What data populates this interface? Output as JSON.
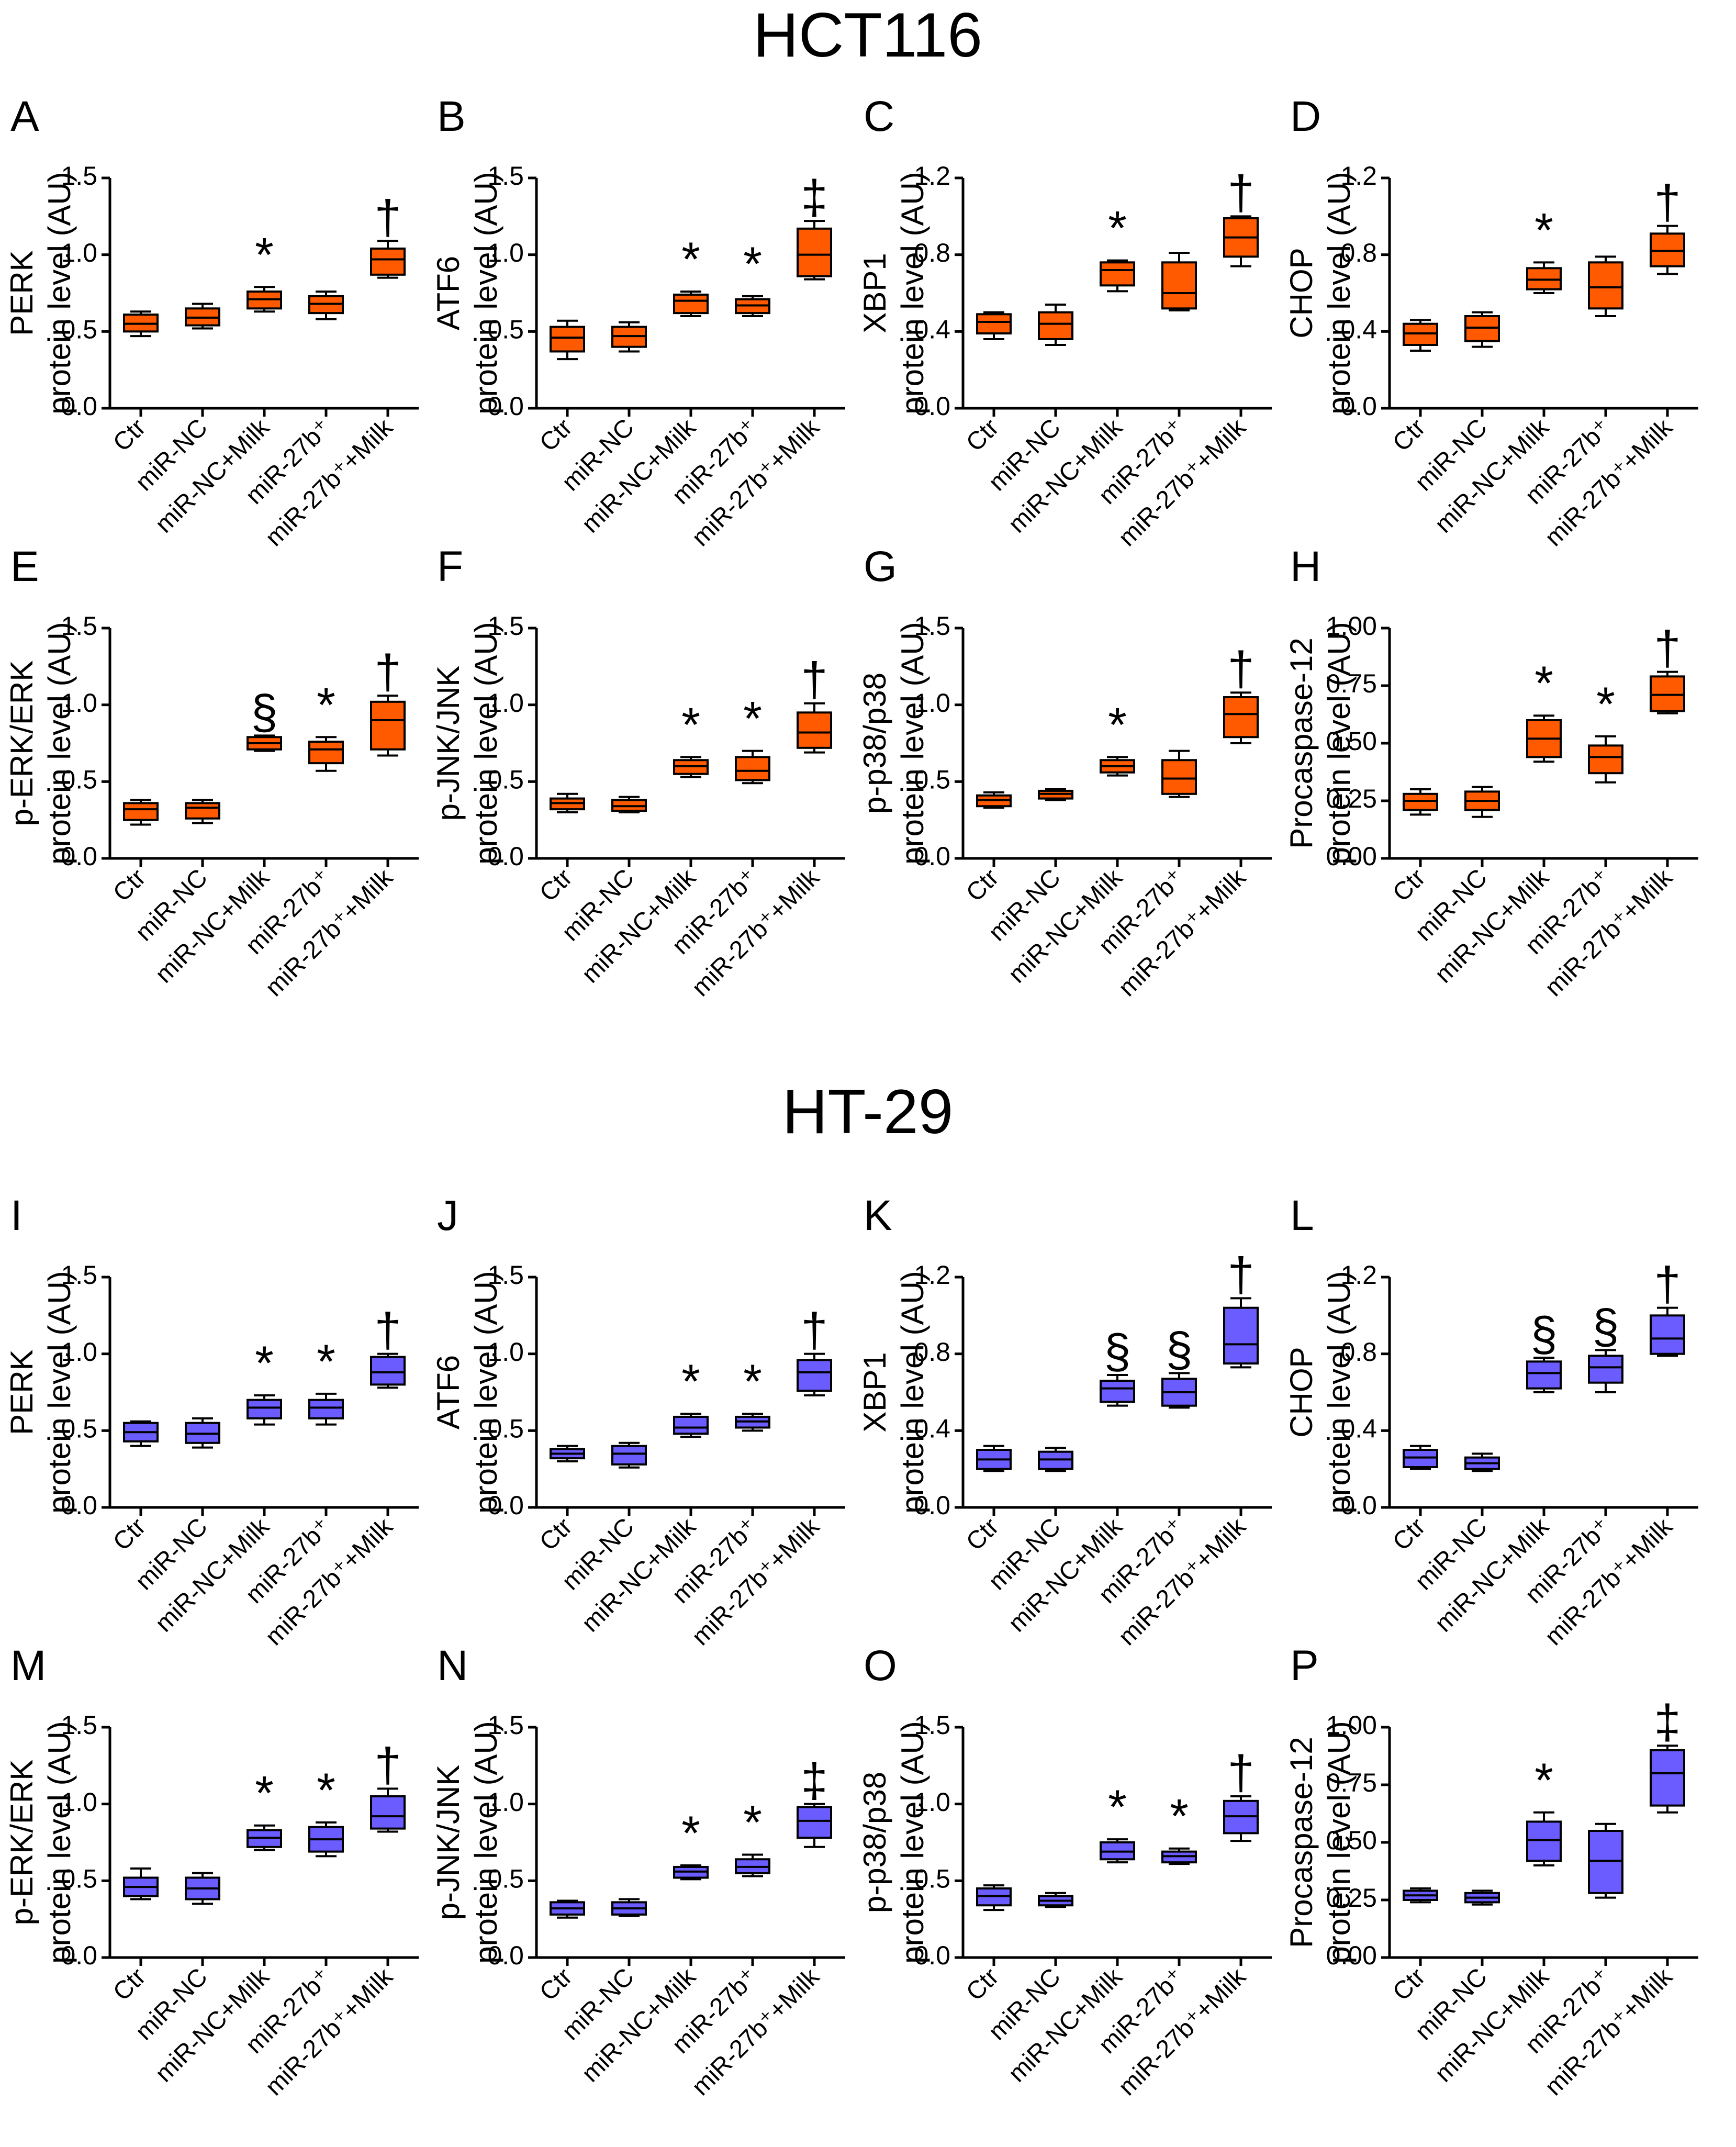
{
  "sections": [
    {
      "title": "HCT116",
      "color": "#FF5A00"
    },
    {
      "title": "HT-29",
      "color": "#6A5CFF"
    }
  ],
  "shared": {
    "ylabel_prefix": "protein level (AU)",
    "categories": [
      "Ctr",
      "miR-NC",
      "miR-NC+Milk",
      "miR-27b⁺",
      "miR-27b⁺+Milk"
    ]
  },
  "chart_data": [
    {
      "panel": "A",
      "section": 0,
      "type": "box",
      "title": "PERK",
      "ylabel": "protein level (AU)",
      "ylim": [
        0,
        1.5
      ],
      "ticks": [
        "0.0",
        "0.5",
        "1.0",
        "1.5"
      ],
      "boxes": [
        {
          "min": 0.47,
          "q1": 0.5,
          "median": 0.55,
          "q3": 0.61,
          "max": 0.63
        },
        {
          "min": 0.52,
          "q1": 0.54,
          "median": 0.59,
          "q3": 0.65,
          "max": 0.68
        },
        {
          "min": 0.63,
          "q1": 0.65,
          "median": 0.71,
          "q3": 0.76,
          "max": 0.79
        },
        {
          "min": 0.58,
          "q1": 0.62,
          "median": 0.68,
          "q3": 0.73,
          "max": 0.76
        },
        {
          "min": 0.85,
          "q1": 0.87,
          "median": 0.97,
          "q3": 1.04,
          "max": 1.09
        }
      ],
      "sig": [
        "",
        "",
        "*",
        "",
        "†"
      ]
    },
    {
      "panel": "B",
      "section": 0,
      "type": "box",
      "title": "ATF6",
      "ylabel": "protein level (AU)",
      "ylim": [
        0,
        1.5
      ],
      "ticks": [
        "0.0",
        "0.5",
        "1.0",
        "1.5"
      ],
      "boxes": [
        {
          "min": 0.32,
          "q1": 0.37,
          "median": 0.46,
          "q3": 0.53,
          "max": 0.57
        },
        {
          "min": 0.37,
          "q1": 0.4,
          "median": 0.47,
          "q3": 0.53,
          "max": 0.56
        },
        {
          "min": 0.6,
          "q1": 0.62,
          "median": 0.7,
          "q3": 0.74,
          "max": 0.76
        },
        {
          "min": 0.6,
          "q1": 0.62,
          "median": 0.67,
          "q3": 0.71,
          "max": 0.73
        },
        {
          "min": 0.84,
          "q1": 0.86,
          "median": 1.0,
          "q3": 1.17,
          "max": 1.22
        }
      ],
      "sig": [
        "",
        "",
        "*",
        "*",
        "‡"
      ]
    },
    {
      "panel": "C",
      "section": 0,
      "type": "box",
      "title": "XBP1",
      "ylabel": "protein level (AU)",
      "ylim": [
        0,
        1.2
      ],
      "ticks": [
        "0.0",
        "0.4",
        "0.8",
        "1.2"
      ],
      "boxes": [
        {
          "min": 0.36,
          "q1": 0.39,
          "median": 0.45,
          "q3": 0.49,
          "max": 0.5
        },
        {
          "min": 0.33,
          "q1": 0.36,
          "median": 0.44,
          "q3": 0.5,
          "max": 0.54
        },
        {
          "min": 0.61,
          "q1": 0.64,
          "median": 0.72,
          "q3": 0.76,
          "max": 0.77
        },
        {
          "min": 0.51,
          "q1": 0.52,
          "median": 0.6,
          "q3": 0.76,
          "max": 0.81
        },
        {
          "min": 0.74,
          "q1": 0.79,
          "median": 0.89,
          "q3": 0.99,
          "max": 1.0
        }
      ],
      "sig": [
        "",
        "",
        "*",
        "",
        "†"
      ]
    },
    {
      "panel": "D",
      "section": 0,
      "type": "box",
      "title": "CHOP",
      "ylabel": "protein level (AU)",
      "ylim": [
        0,
        1.2
      ],
      "ticks": [
        "0.0",
        "0.4",
        "0.8",
        "1.2"
      ],
      "boxes": [
        {
          "min": 0.3,
          "q1": 0.33,
          "median": 0.39,
          "q3": 0.44,
          "max": 0.46
        },
        {
          "min": 0.32,
          "q1": 0.35,
          "median": 0.42,
          "q3": 0.48,
          "max": 0.5
        },
        {
          "min": 0.6,
          "q1": 0.62,
          "median": 0.67,
          "q3": 0.73,
          "max": 0.76
        },
        {
          "min": 0.48,
          "q1": 0.52,
          "median": 0.63,
          "q3": 0.76,
          "max": 0.79
        },
        {
          "min": 0.7,
          "q1": 0.74,
          "median": 0.82,
          "q3": 0.91,
          "max": 0.95
        }
      ],
      "sig": [
        "",
        "",
        "*",
        "",
        "†"
      ]
    },
    {
      "panel": "E",
      "section": 0,
      "type": "box",
      "title": "p-ERK/ERK",
      "ylabel": "protein level (AU)",
      "ylim": [
        0,
        1.5
      ],
      "ticks": [
        "0.0",
        "0.5",
        "1.0",
        "1.5"
      ],
      "boxes": [
        {
          "min": 0.22,
          "q1": 0.25,
          "median": 0.32,
          "q3": 0.36,
          "max": 0.38
        },
        {
          "min": 0.23,
          "q1": 0.26,
          "median": 0.33,
          "q3": 0.36,
          "max": 0.38
        },
        {
          "min": 0.7,
          "q1": 0.71,
          "median": 0.75,
          "q3": 0.79,
          "max": 0.8
        },
        {
          "min": 0.57,
          "q1": 0.62,
          "median": 0.71,
          "q3": 0.76,
          "max": 0.79
        },
        {
          "min": 0.67,
          "q1": 0.71,
          "median": 0.9,
          "q3": 1.02,
          "max": 1.06
        }
      ],
      "sig": [
        "",
        "",
        "§",
        "*",
        "†"
      ]
    },
    {
      "panel": "F",
      "section": 0,
      "type": "box",
      "title": "p-JNK/JNK",
      "ylabel": "protein level (AU)",
      "ylim": [
        0,
        1.5
      ],
      "ticks": [
        "0.0",
        "0.5",
        "1.0",
        "1.5"
      ],
      "boxes": [
        {
          "min": 0.3,
          "q1": 0.32,
          "median": 0.36,
          "q3": 0.39,
          "max": 0.42
        },
        {
          "min": 0.3,
          "q1": 0.31,
          "median": 0.34,
          "q3": 0.38,
          "max": 0.4
        },
        {
          "min": 0.53,
          "q1": 0.55,
          "median": 0.6,
          "q3": 0.64,
          "max": 0.66
        },
        {
          "min": 0.49,
          "q1": 0.51,
          "median": 0.57,
          "q3": 0.66,
          "max": 0.7
        },
        {
          "min": 0.69,
          "q1": 0.72,
          "median": 0.82,
          "q3": 0.95,
          "max": 1.01
        }
      ],
      "sig": [
        "",
        "",
        "*",
        "*",
        "†"
      ]
    },
    {
      "panel": "G",
      "section": 0,
      "type": "box",
      "title": "p-p38/p38",
      "ylabel": "protein level (AU)",
      "ylim": [
        0,
        1.5
      ],
      "ticks": [
        "0.0",
        "0.5",
        "1.0",
        "1.5"
      ],
      "boxes": [
        {
          "min": 0.33,
          "q1": 0.34,
          "median": 0.38,
          "q3": 0.41,
          "max": 0.43
        },
        {
          "min": 0.38,
          "q1": 0.39,
          "median": 0.42,
          "q3": 0.44,
          "max": 0.45
        },
        {
          "min": 0.54,
          "q1": 0.56,
          "median": 0.6,
          "q3": 0.64,
          "max": 0.66
        },
        {
          "min": 0.4,
          "q1": 0.42,
          "median": 0.52,
          "q3": 0.64,
          "max": 0.7
        },
        {
          "min": 0.75,
          "q1": 0.79,
          "median": 0.94,
          "q3": 1.05,
          "max": 1.08
        }
      ],
      "sig": [
        "",
        "",
        "*",
        "",
        "†"
      ]
    },
    {
      "panel": "H",
      "section": 0,
      "type": "box",
      "title": "Procaspase-12",
      "ylabel": "protein level (AU)",
      "ylim": [
        0,
        1.0
      ],
      "ticks": [
        "0.00",
        "0.25",
        "0.50",
        "0.75",
        "1.00"
      ],
      "boxes": [
        {
          "min": 0.19,
          "q1": 0.21,
          "median": 0.25,
          "q3": 0.28,
          "max": 0.3
        },
        {
          "min": 0.18,
          "q1": 0.21,
          "median": 0.25,
          "q3": 0.29,
          "max": 0.31
        },
        {
          "min": 0.42,
          "q1": 0.44,
          "median": 0.52,
          "q3": 0.6,
          "max": 0.62
        },
        {
          "min": 0.33,
          "q1": 0.37,
          "median": 0.44,
          "q3": 0.49,
          "max": 0.53
        },
        {
          "min": 0.63,
          "q1": 0.64,
          "median": 0.71,
          "q3": 0.79,
          "max": 0.81
        }
      ],
      "sig": [
        "",
        "",
        "*",
        "*",
        "†"
      ]
    },
    {
      "panel": "I",
      "section": 1,
      "type": "box",
      "title": "PERK",
      "ylabel": "protein level (AU)",
      "ylim": [
        0,
        1.5
      ],
      "ticks": [
        "0.0",
        "0.5",
        "1.0",
        "1.5"
      ],
      "boxes": [
        {
          "min": 0.4,
          "q1": 0.43,
          "median": 0.49,
          "q3": 0.55,
          "max": 0.56
        },
        {
          "min": 0.39,
          "q1": 0.42,
          "median": 0.48,
          "q3": 0.55,
          "max": 0.58
        },
        {
          "min": 0.54,
          "q1": 0.58,
          "median": 0.65,
          "q3": 0.7,
          "max": 0.73
        },
        {
          "min": 0.54,
          "q1": 0.58,
          "median": 0.65,
          "q3": 0.7,
          "max": 0.74
        },
        {
          "min": 0.78,
          "q1": 0.8,
          "median": 0.88,
          "q3": 0.98,
          "max": 1.0
        }
      ],
      "sig": [
        "",
        "",
        "*",
        "*",
        "†"
      ]
    },
    {
      "panel": "J",
      "section": 1,
      "type": "box",
      "title": "ATF6",
      "ylabel": "protein level (AU)",
      "ylim": [
        0,
        1.5
      ],
      "ticks": [
        "0.0",
        "0.5",
        "1.0",
        "1.5"
      ],
      "boxes": [
        {
          "min": 0.3,
          "q1": 0.32,
          "median": 0.35,
          "q3": 0.38,
          "max": 0.4
        },
        {
          "min": 0.26,
          "q1": 0.28,
          "median": 0.35,
          "q3": 0.4,
          "max": 0.42
        },
        {
          "min": 0.46,
          "q1": 0.48,
          "median": 0.52,
          "q3": 0.59,
          "max": 0.61
        },
        {
          "min": 0.5,
          "q1": 0.52,
          "median": 0.56,
          "q3": 0.59,
          "max": 0.61
        },
        {
          "min": 0.73,
          "q1": 0.76,
          "median": 0.88,
          "q3": 0.96,
          "max": 1.0
        }
      ],
      "sig": [
        "",
        "",
        "*",
        "*",
        "†"
      ]
    },
    {
      "panel": "K",
      "section": 1,
      "type": "box",
      "title": "XBP1",
      "ylabel": "protein level (AU)",
      "ylim": [
        0,
        1.2
      ],
      "ticks": [
        "0.0",
        "0.4",
        "0.8",
        "1.2"
      ],
      "boxes": [
        {
          "min": 0.19,
          "q1": 0.2,
          "median": 0.25,
          "q3": 0.3,
          "max": 0.32
        },
        {
          "min": 0.19,
          "q1": 0.2,
          "median": 0.25,
          "q3": 0.29,
          "max": 0.31
        },
        {
          "min": 0.53,
          "q1": 0.55,
          "median": 0.62,
          "q3": 0.66,
          "max": 0.69
        },
        {
          "min": 0.52,
          "q1": 0.53,
          "median": 0.6,
          "q3": 0.67,
          "max": 0.7
        },
        {
          "min": 0.73,
          "q1": 0.75,
          "median": 0.85,
          "q3": 1.04,
          "max": 1.09
        }
      ],
      "sig": [
        "",
        "",
        "§",
        "§",
        "†"
      ]
    },
    {
      "panel": "L",
      "section": 1,
      "type": "box",
      "title": "CHOP",
      "ylabel": "protein level (AU)",
      "ylim": [
        0,
        1.2
      ],
      "ticks": [
        "0.0",
        "0.4",
        "0.8",
        "1.2"
      ],
      "boxes": [
        {
          "min": 0.2,
          "q1": 0.21,
          "median": 0.26,
          "q3": 0.3,
          "max": 0.32
        },
        {
          "min": 0.19,
          "q1": 0.2,
          "median": 0.23,
          "q3": 0.26,
          "max": 0.28
        },
        {
          "min": 0.6,
          "q1": 0.62,
          "median": 0.7,
          "q3": 0.76,
          "max": 0.78
        },
        {
          "min": 0.6,
          "q1": 0.65,
          "median": 0.73,
          "q3": 0.79,
          "max": 0.82
        },
        {
          "min": 0.79,
          "q1": 0.8,
          "median": 0.88,
          "q3": 1.0,
          "max": 1.04
        }
      ],
      "sig": [
        "",
        "",
        "§",
        "§",
        "†"
      ]
    },
    {
      "panel": "M",
      "section": 1,
      "type": "box",
      "title": "p-ERK/ERK",
      "ylabel": "protein level (AU)",
      "ylim": [
        0,
        1.5
      ],
      "ticks": [
        "0.0",
        "0.5",
        "1.0",
        "1.5"
      ],
      "boxes": [
        {
          "min": 0.38,
          "q1": 0.4,
          "median": 0.46,
          "q3": 0.52,
          "max": 0.58
        },
        {
          "min": 0.35,
          "q1": 0.38,
          "median": 0.45,
          "q3": 0.52,
          "max": 0.55
        },
        {
          "min": 0.7,
          "q1": 0.72,
          "median": 0.78,
          "q3": 0.83,
          "max": 0.86
        },
        {
          "min": 0.66,
          "q1": 0.69,
          "median": 0.77,
          "q3": 0.85,
          "max": 0.88
        },
        {
          "min": 0.82,
          "q1": 0.84,
          "median": 0.92,
          "q3": 1.05,
          "max": 1.1
        }
      ],
      "sig": [
        "",
        "",
        "*",
        "*",
        "†"
      ]
    },
    {
      "panel": "N",
      "section": 1,
      "type": "box",
      "title": "p-JNK/JNK",
      "ylabel": "protein level (AU)",
      "ylim": [
        0,
        1.5
      ],
      "ticks": [
        "0.0",
        "0.5",
        "1.0",
        "1.5"
      ],
      "boxes": [
        {
          "min": 0.26,
          "q1": 0.28,
          "median": 0.32,
          "q3": 0.36,
          "max": 0.37
        },
        {
          "min": 0.27,
          "q1": 0.28,
          "median": 0.32,
          "q3": 0.36,
          "max": 0.38
        },
        {
          "min": 0.51,
          "q1": 0.52,
          "median": 0.56,
          "q3": 0.59,
          "max": 0.6
        },
        {
          "min": 0.53,
          "q1": 0.55,
          "median": 0.59,
          "q3": 0.64,
          "max": 0.67
        },
        {
          "min": 0.72,
          "q1": 0.78,
          "median": 0.89,
          "q3": 0.98,
          "max": 1.0
        }
      ],
      "sig": [
        "",
        "",
        "*",
        "*",
        "‡"
      ]
    },
    {
      "panel": "O",
      "section": 1,
      "type": "box",
      "title": "p-p38/p38",
      "ylabel": "protein level (AU)",
      "ylim": [
        0,
        1.5
      ],
      "ticks": [
        "0.0",
        "0.5",
        "1.0",
        "1.5"
      ],
      "boxes": [
        {
          "min": 0.31,
          "q1": 0.34,
          "median": 0.4,
          "q3": 0.45,
          "max": 0.47
        },
        {
          "min": 0.33,
          "q1": 0.34,
          "median": 0.37,
          "q3": 0.4,
          "max": 0.42
        },
        {
          "min": 0.62,
          "q1": 0.64,
          "median": 0.69,
          "q3": 0.75,
          "max": 0.77
        },
        {
          "min": 0.61,
          "q1": 0.62,
          "median": 0.66,
          "q3": 0.69,
          "max": 0.71
        },
        {
          "min": 0.76,
          "q1": 0.81,
          "median": 0.92,
          "q3": 1.02,
          "max": 1.05
        }
      ],
      "sig": [
        "",
        "",
        "*",
        "*",
        "†"
      ]
    },
    {
      "panel": "P",
      "section": 1,
      "type": "box",
      "title": "Procaspase-12",
      "ylabel": "protein level (AU)",
      "ylim": [
        0,
        1.0
      ],
      "ticks": [
        "0.00",
        "0.25",
        "0.50",
        "0.75",
        "1.00"
      ],
      "boxes": [
        {
          "min": 0.24,
          "q1": 0.25,
          "median": 0.27,
          "q3": 0.29,
          "max": 0.3
        },
        {
          "min": 0.23,
          "q1": 0.24,
          "median": 0.26,
          "q3": 0.28,
          "max": 0.29
        },
        {
          "min": 0.4,
          "q1": 0.42,
          "median": 0.51,
          "q3": 0.59,
          "max": 0.63
        },
        {
          "min": 0.26,
          "q1": 0.28,
          "median": 0.42,
          "q3": 0.55,
          "max": 0.58
        },
        {
          "min": 0.63,
          "q1": 0.66,
          "median": 0.8,
          "q3": 0.9,
          "max": 0.92
        }
      ],
      "sig": [
        "",
        "",
        "*",
        "",
        "‡"
      ]
    }
  ]
}
